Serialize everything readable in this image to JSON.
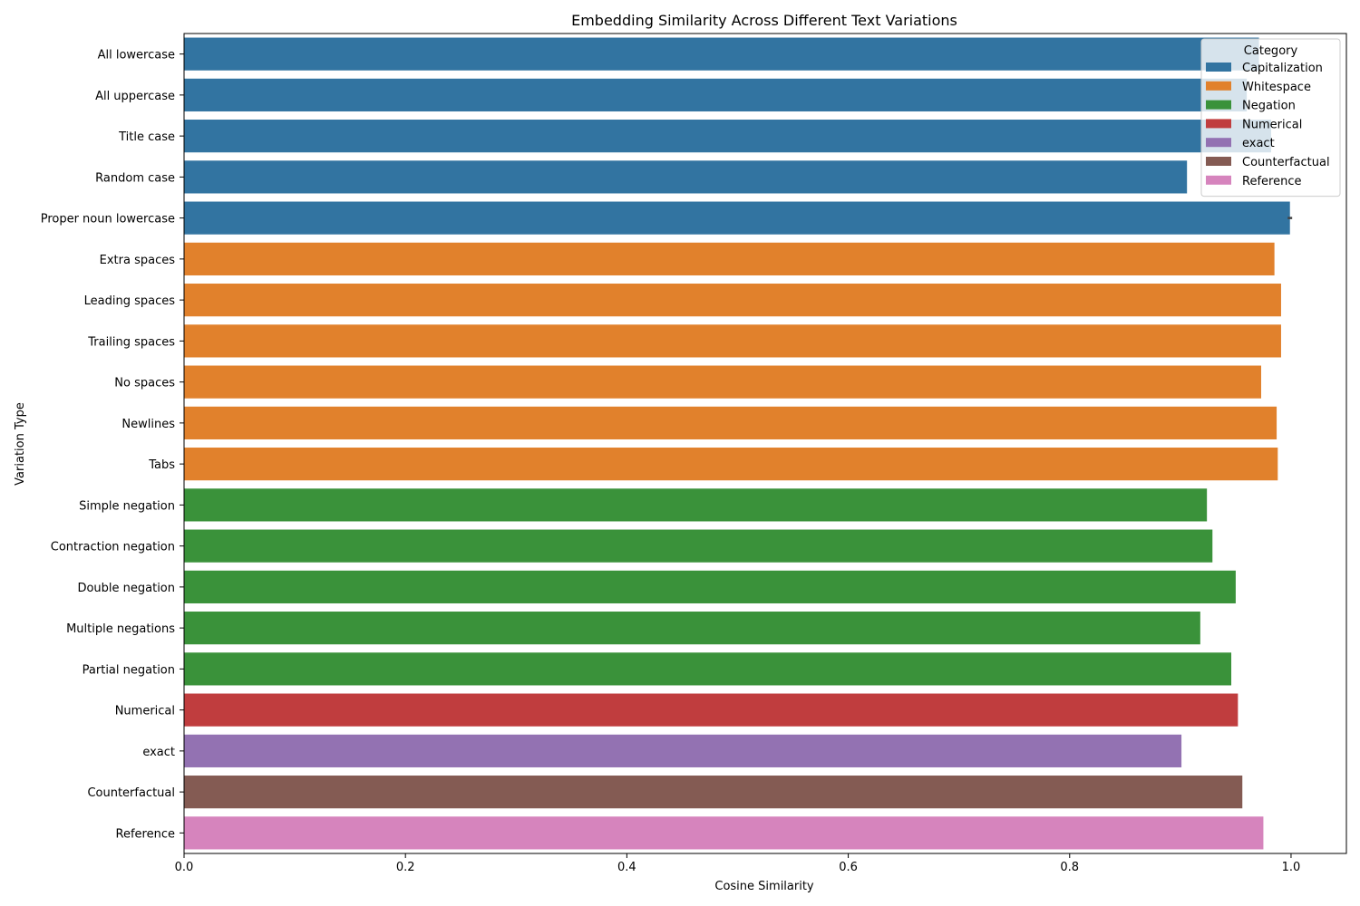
{
  "chart_data": {
    "type": "bar",
    "orientation": "horizontal",
    "title": "Embedding Similarity Across Different Text Variations",
    "xlabel": "Cosine Similarity",
    "ylabel": "Variation Type",
    "xlim": [
      0,
      1.05
    ],
    "x_ticks": [
      "0.0",
      "0.2",
      "0.4",
      "0.6",
      "0.8",
      "1.0"
    ],
    "grid": false,
    "legend": {
      "title": "Category",
      "placement": "top-right",
      "entries": [
        {
          "name": "Capitalization",
          "color": "#3274a1"
        },
        {
          "name": "Whitespace",
          "color": "#e1812c"
        },
        {
          "name": "Negation",
          "color": "#3a923a"
        },
        {
          "name": "Numerical",
          "color": "#c03d3e"
        },
        {
          "name": "exact",
          "color": "#9372b2"
        },
        {
          "name": "Counterfactual",
          "color": "#845b53"
        },
        {
          "name": "Reference",
          "color": "#d684bd"
        }
      ]
    },
    "categories": [
      "All lowercase",
      "All uppercase",
      "Title case",
      "Random case",
      "Proper noun lowercase",
      "Extra spaces",
      "Leading spaces",
      "Trailing spaces",
      "No spaces",
      "Newlines",
      "Tabs",
      "Simple negation",
      "Contraction negation",
      "Double negation",
      "Multiple negations",
      "Partial negation",
      "Numerical",
      "exact",
      "Counterfactual",
      "Reference"
    ],
    "bars": [
      {
        "label": "All lowercase",
        "category": "Capitalization",
        "value": 0.971
      },
      {
        "label": "All uppercase",
        "category": "Capitalization",
        "value": 0.96
      },
      {
        "label": "Title case",
        "category": "Capitalization",
        "value": 0.982
      },
      {
        "label": "Random case",
        "category": "Capitalization",
        "value": 0.906
      },
      {
        "label": "Proper noun lowercase",
        "category": "Capitalization",
        "value": 0.999,
        "error": 0.002
      },
      {
        "label": "Extra spaces",
        "category": "Whitespace",
        "value": 0.985
      },
      {
        "label": "Leading spaces",
        "category": "Whitespace",
        "value": 0.991
      },
      {
        "label": "Trailing spaces",
        "category": "Whitespace",
        "value": 0.991
      },
      {
        "label": "No spaces",
        "category": "Whitespace",
        "value": 0.973
      },
      {
        "label": "Newlines",
        "category": "Whitespace",
        "value": 0.987
      },
      {
        "label": "Tabs",
        "category": "Whitespace",
        "value": 0.988
      },
      {
        "label": "Simple negation",
        "category": "Negation",
        "value": 0.924
      },
      {
        "label": "Contraction negation",
        "category": "Negation",
        "value": 0.929
      },
      {
        "label": "Double negation",
        "category": "Negation",
        "value": 0.95
      },
      {
        "label": "Multiple negations",
        "category": "Negation",
        "value": 0.918
      },
      {
        "label": "Partial negation",
        "category": "Negation",
        "value": 0.946
      },
      {
        "label": "Numerical",
        "category": "Numerical",
        "value": 0.952
      },
      {
        "label": "exact",
        "category": "exact",
        "value": 0.901
      },
      {
        "label": "Counterfactual",
        "category": "Counterfactual",
        "value": 0.956
      },
      {
        "label": "Reference",
        "category": "Reference",
        "value": 0.975
      }
    ]
  }
}
